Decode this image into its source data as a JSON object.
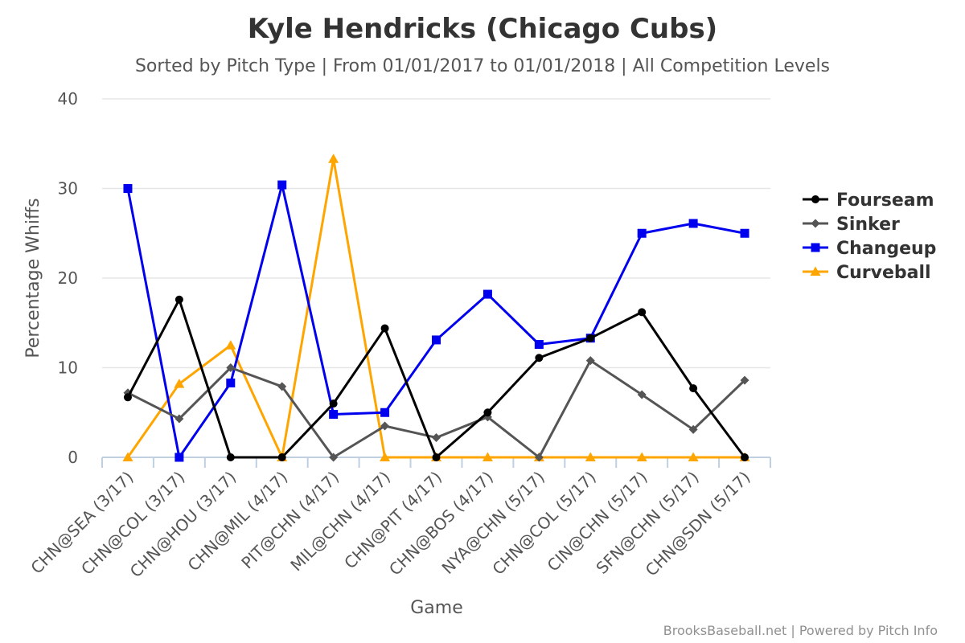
{
  "chart_data": {
    "type": "line",
    "title": "Kyle Hendricks (Chicago Cubs)",
    "subtitle": "Sorted by Pitch Type | From 01/01/2017 to 01/01/2018 | All Competition Levels",
    "xlabel": "Game",
    "ylabel": "Percentage Whiffs",
    "ylim": [
      0,
      40
    ],
    "yticks": [
      0,
      10,
      20,
      30,
      40
    ],
    "grid": true,
    "legend_position": "right",
    "categories": [
      "CHN@SEA (3/17)",
      "CHN@COL (3/17)",
      "CHN@HOU (3/17)",
      "CHN@MIL (4/17)",
      "PIT@CHN (4/17)",
      "MIL@CHN (4/17)",
      "CHN@PIT (4/17)",
      "CHN@BOS (4/17)",
      "NYA@CHN (5/17)",
      "CHN@COL (5/17)",
      "CIN@CHN (5/17)",
      "SFN@CHN (5/17)",
      "CHN@SDN (5/17)"
    ],
    "series": [
      {
        "name": "Fourseam",
        "color": "#000000",
        "marker": "circle",
        "values": [
          6.7,
          17.6,
          0,
          0,
          6.0,
          14.4,
          0,
          5.0,
          11.1,
          13.3,
          16.2,
          7.7,
          0
        ]
      },
      {
        "name": "Sinker",
        "color": "#555555",
        "marker": "diamond",
        "values": [
          7.2,
          4.3,
          10.0,
          7.9,
          0,
          3.5,
          2.2,
          4.5,
          0,
          10.8,
          7.0,
          3.1,
          8.6
        ]
      },
      {
        "name": "Changeup",
        "color": "#0000ee",
        "marker": "square",
        "values": [
          30.0,
          0,
          8.3,
          30.4,
          4.8,
          5.0,
          13.1,
          18.2,
          12.6,
          13.3,
          25.0,
          26.1,
          25.0
        ]
      },
      {
        "name": "Curveball",
        "color": "#ffa500",
        "marker": "triangle",
        "values": [
          0,
          8.2,
          12.5,
          0,
          33.3,
          0,
          0,
          0,
          0,
          0,
          0,
          0,
          0
        ]
      }
    ]
  },
  "credits": "BrooksBaseball.net | Powered by Pitch Info"
}
